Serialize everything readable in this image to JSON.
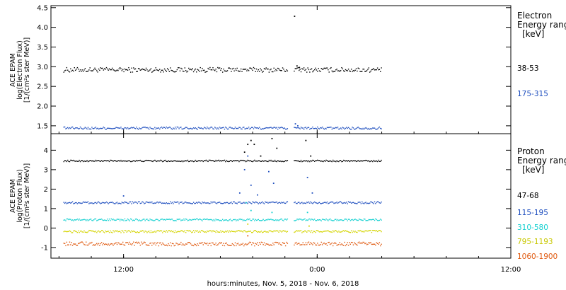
{
  "chart_data": {
    "type": "scatter",
    "xlabel": "hours:minutes, Nov.  5, 2018 - Nov.  6, 2018",
    "x_ticks": [
      {
        "hour": 12,
        "label": "12:00"
      },
      {
        "hour": 24,
        "label": "0:00"
      },
      {
        "hour": 36,
        "label": "12:00"
      }
    ],
    "xlim": [
      7.5,
      36
    ],
    "panels": [
      {
        "id": "electron",
        "ylabel": [
          "ACE EPAM",
          "log(Electron Flux)",
          "[1/(cm²s ster MeV)]"
        ],
        "ylim": [
          1.3,
          4.55
        ],
        "y_ticks": [
          "1.5",
          "2.0",
          "2.5",
          "3.0",
          "3.5",
          "4.0",
          "4.5"
        ],
        "legend_title": [
          "Electron",
          "Energy ranges",
          "[keV]"
        ],
        "series": [
          {
            "name": "38-53",
            "color": "#000000",
            "base": 2.92,
            "noise": 0.06,
            "events": [
              {
                "t": 22.6,
                "v": 4.28
              },
              {
                "t": 22.75,
                "v": 3.02
              },
              {
                "t": 22.9,
                "v": 2.98
              }
            ]
          },
          {
            "name": "175-315",
            "color": "#1f4fbf",
            "base": 1.44,
            "noise": 0.03,
            "events": [
              {
                "t": 22.65,
                "v": 1.55
              },
              {
                "t": 22.8,
                "v": 1.5
              }
            ]
          }
        ]
      },
      {
        "id": "proton",
        "ylabel": [
          "ACE EPAM",
          "log(Proton Flux)",
          "[1/(cm²s ster MeV)]"
        ],
        "ylim": [
          -1.55,
          4.85
        ],
        "y_ticks": [
          "-1",
          "0",
          "1",
          "2",
          "3",
          "4"
        ],
        "legend_title": [
          "Proton",
          "Energy ranges",
          "[keV]"
        ],
        "series": [
          {
            "name": "47-68",
            "color": "#000000",
            "base": 3.45,
            "noise": 0.04,
            "events": [
              {
                "t": 19.5,
                "v": 3.9
              },
              {
                "t": 19.7,
                "v": 4.3
              },
              {
                "t": 19.9,
                "v": 4.5
              },
              {
                "t": 20.1,
                "v": 4.3
              },
              {
                "t": 20.5,
                "v": 3.7
              },
              {
                "t": 21.2,
                "v": 4.6
              },
              {
                "t": 21.5,
                "v": 4.1
              },
              {
                "t": 23.3,
                "v": 4.5
              },
              {
                "t": 23.6,
                "v": 3.7
              }
            ]
          },
          {
            "name": "115-195",
            "color": "#1f4fbf",
            "base": 1.3,
            "noise": 0.05,
            "events": [
              {
                "t": 12.0,
                "v": 1.65
              },
              {
                "t": 19.2,
                "v": 1.8
              },
              {
                "t": 19.5,
                "v": 3.0
              },
              {
                "t": 19.7,
                "v": 3.7
              },
              {
                "t": 19.9,
                "v": 2.2
              },
              {
                "t": 20.3,
                "v": 1.7
              },
              {
                "t": 21.0,
                "v": 2.9
              },
              {
                "t": 21.3,
                "v": 2.3
              },
              {
                "t": 23.4,
                "v": 2.6
              },
              {
                "t": 23.7,
                "v": 1.8
              }
            ]
          },
          {
            "name": "310-580",
            "color": "#14d0d0",
            "base": 0.42,
            "noise": 0.05,
            "events": [
              {
                "t": 19.6,
                "v": 1.3
              },
              {
                "t": 19.9,
                "v": 0.9
              },
              {
                "t": 21.2,
                "v": 0.8
              },
              {
                "t": 23.4,
                "v": 0.8
              }
            ]
          },
          {
            "name": "795-1193",
            "color": "#d4d400",
            "base": -0.18,
            "noise": 0.06,
            "events": [
              {
                "t": 19.7,
                "v": 0.2
              },
              {
                "t": 23.5,
                "v": 0.1
              }
            ]
          },
          {
            "name": "1060-1900",
            "color": "#e05a10",
            "base": -0.82,
            "noise": 0.1,
            "events": [
              {
                "t": 19.7,
                "v": -0.4
              }
            ]
          }
        ]
      }
    ],
    "data_window": {
      "start": 8.3,
      "end": 28.0,
      "gap": [
        22.2,
        22.55
      ]
    }
  }
}
